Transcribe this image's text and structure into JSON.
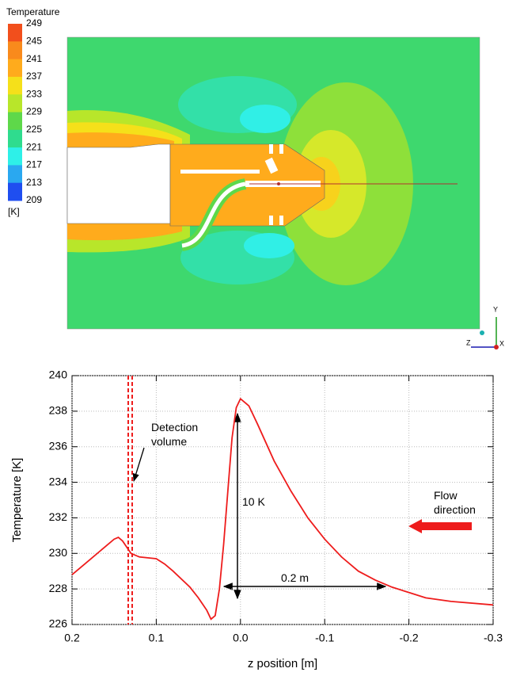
{
  "chart_data": [
    {
      "type": "contour",
      "colorbar": {
        "title": "Temperature",
        "unit": "[K]",
        "ticks": [
          249,
          245,
          241,
          237,
          233,
          229,
          225,
          221,
          217,
          213,
          209
        ],
        "colors": [
          "#f24f1c",
          "#f98a1c",
          "#ffab1c",
          "#f5e01a",
          "#b8e62a",
          "#5ed84a",
          "#2fdc8e",
          "#2ef0e8",
          "#2aa8f0",
          "#1f4ef0"
        ]
      },
      "axis_labels": [
        "Y",
        "Z",
        "X"
      ]
    },
    {
      "type": "line",
      "xlabel": "z position [m]",
      "ylabel": "Temperature [K]",
      "x": [
        0.2,
        0.18,
        0.16,
        0.15,
        0.145,
        0.14,
        0.13,
        0.12,
        0.11,
        0.1,
        0.09,
        0.08,
        0.06,
        0.05,
        0.04,
        0.035,
        0.03,
        0.025,
        0.02,
        0.015,
        0.01,
        0.005,
        0,
        -0.01,
        -0.02,
        -0.04,
        -0.06,
        -0.08,
        -0.1,
        -0.12,
        -0.14,
        -0.16,
        -0.18,
        -0.2,
        -0.22,
        -0.25,
        -0.3
      ],
      "series": [
        {
          "color": "#ee1c1c",
          "values": [
            228.8,
            229.6,
            230.4,
            230.8,
            230.9,
            230.7,
            230.0,
            229.8,
            229.75,
            229.7,
            229.4,
            229.0,
            228.1,
            227.5,
            226.8,
            226.3,
            226.5,
            228.0,
            230.5,
            233.5,
            236.5,
            238.2,
            238.7,
            238.3,
            237.3,
            235.2,
            233.5,
            232.0,
            230.8,
            229.8,
            229.0,
            228.5,
            228.1,
            227.8,
            227.5,
            227.3,
            227.1
          ]
        }
      ],
      "xlim": [
        0.2,
        -0.3
      ],
      "xticks": [
        0.2,
        0.1,
        {
          "value": 0,
          "label": "0.0"
        },
        -0.1,
        -0.2,
        -0.3
      ],
      "ylim": [
        226,
        240
      ],
      "yticks": [
        226,
        228,
        230,
        232,
        234,
        236,
        238,
        240
      ],
      "grid": true,
      "annotations": [
        "Detection volume",
        "10 K",
        "0.2 m",
        "Flow direction"
      ]
    }
  ]
}
